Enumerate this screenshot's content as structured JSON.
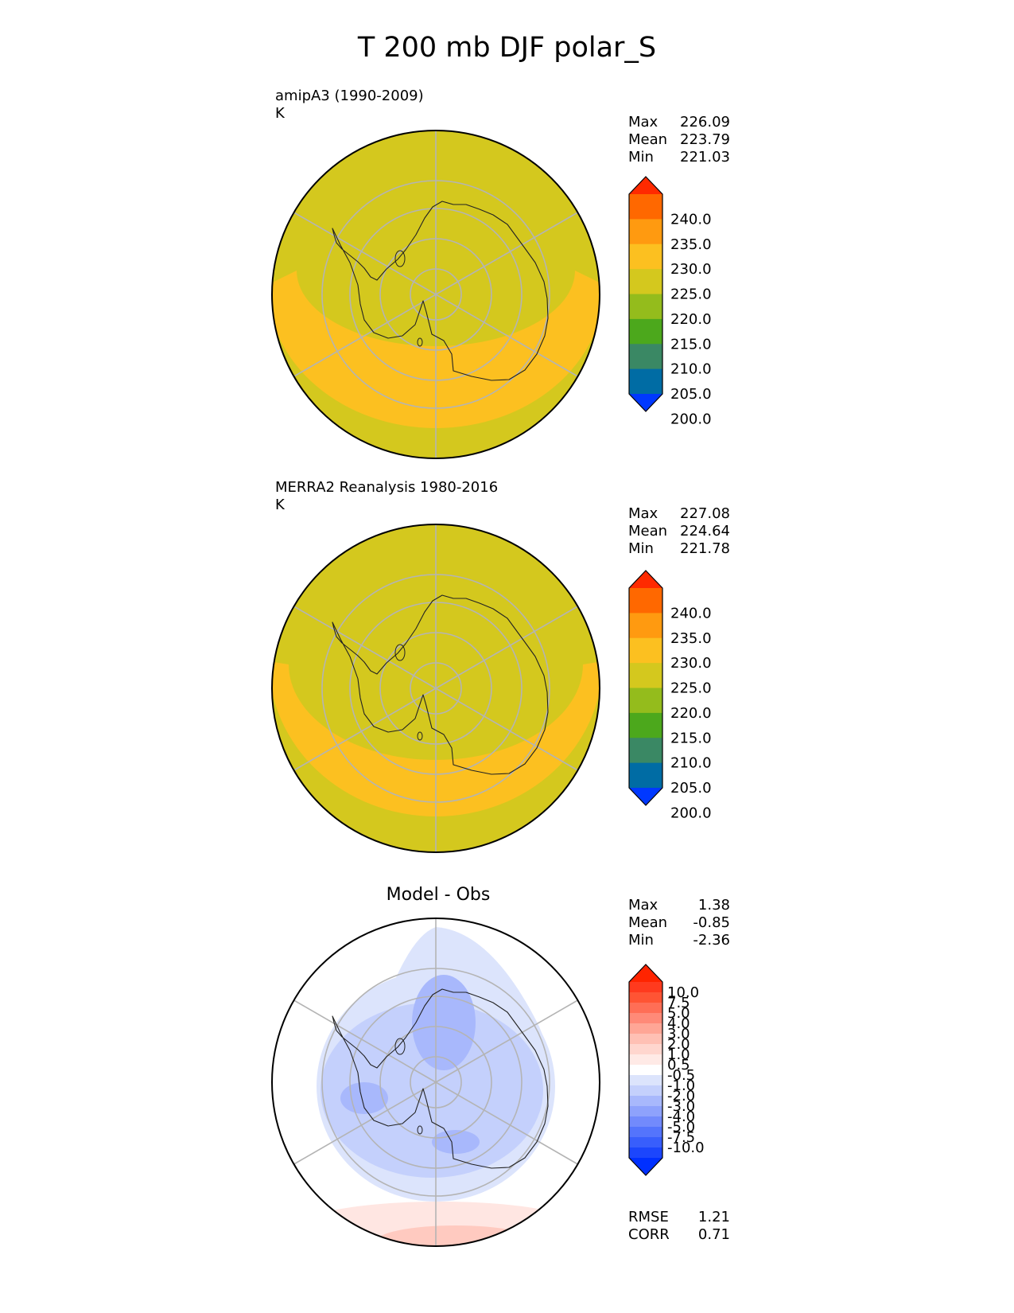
{
  "figure": {
    "title": "T 200 mb DJF polar_S"
  },
  "panels": [
    {
      "id": "model",
      "label": "amipA3 (1990-2009)",
      "units": "K",
      "stats": [
        {
          "name": "Max",
          "value": "226.09"
        },
        {
          "name": "Mean",
          "value": "223.79"
        },
        {
          "name": "Min",
          "value": "221.03"
        }
      ]
    },
    {
      "id": "obs",
      "label": "MERRA2 Reanalysis 1980-2016",
      "units": "K",
      "stats": [
        {
          "name": "Max",
          "value": "227.08"
        },
        {
          "name": "Mean",
          "value": "224.64"
        },
        {
          "name": "Min",
          "value": "221.78"
        }
      ]
    },
    {
      "id": "diff",
      "title": "Model - Obs",
      "stats": [
        {
          "name": "Max",
          "value": "1.38"
        },
        {
          "name": "Mean",
          "value": "-0.85"
        },
        {
          "name": "Min",
          "value": "-2.36"
        }
      ],
      "metrics": [
        {
          "name": "RMSE",
          "value": "1.21"
        },
        {
          "name": "CORR",
          "value": "0.71"
        }
      ]
    }
  ],
  "chart_data": [
    {
      "type": "heatmap",
      "projection": "south polar stereographic",
      "title": "amipA3 (1990-2009)",
      "units": "K",
      "stats": {
        "max": 226.09,
        "mean": 223.79,
        "min": 221.03
      },
      "colorbar": {
        "ticks": [
          "240.0",
          "235.0",
          "230.0",
          "225.0",
          "220.0",
          "215.0",
          "210.0",
          "205.0",
          "200.0"
        ],
        "colors": [
          "#ff2a00",
          "#ff6800",
          "#ff9a10",
          "#fcc020",
          "#d4c81e",
          "#94bc1c",
          "#4ca81c",
          "#3a8864",
          "#006ca4",
          "#0038ff"
        ],
        "extend": "both"
      },
      "field": [
        {
          "level": "220-225",
          "color": "#d4c81e",
          "region": "background"
        },
        {
          "level": "225-230",
          "color": "#fcc020",
          "region": "ring-band"
        }
      ]
    },
    {
      "type": "heatmap",
      "projection": "south polar stereographic",
      "title": "MERRA2 Reanalysis 1980-2016",
      "units": "K",
      "stats": {
        "max": 227.08,
        "mean": 224.64,
        "min": 221.78
      },
      "colorbar": {
        "ticks": [
          "240.0",
          "235.0",
          "230.0",
          "225.0",
          "220.0",
          "215.0",
          "210.0",
          "205.0",
          "200.0"
        ],
        "colors": [
          "#ff2a00",
          "#ff6800",
          "#ff9a10",
          "#fcc020",
          "#d4c81e",
          "#94bc1c",
          "#4ca81c",
          "#3a8864",
          "#006ca4",
          "#0038ff"
        ],
        "extend": "both"
      },
      "field": [
        {
          "level": "220-225",
          "color": "#d4c81e",
          "region": "background"
        },
        {
          "level": "225-230",
          "color": "#fcc020",
          "region": "ring-band"
        }
      ]
    },
    {
      "type": "heatmap",
      "projection": "south polar stereographic",
      "title": "Model - Obs",
      "stats": {
        "max": 1.38,
        "mean": -0.85,
        "min": -2.36
      },
      "metrics": {
        "rmse": 1.21,
        "corr": 0.71
      },
      "colorbar": {
        "ticks": [
          "10.0",
          "7.5",
          "5.0",
          "4.0",
          "3.0",
          "2.0",
          "1.0",
          "0.5",
          "-0.5",
          "-1.0",
          "-2.0",
          "-3.0",
          "-4.0",
          "-5.0",
          "-7.5",
          "-10.0"
        ],
        "colors": [
          "#ff2400",
          "#ff3a1e",
          "#ff5434",
          "#ff6e56",
          "#ff8a78",
          "#ffa696",
          "#ffc0b4",
          "#ffd6ce",
          "#ffeae6",
          "#ffffff",
          "#dce4fc",
          "#c4d0fc",
          "#a8b8fc",
          "#8ea2fc",
          "#728afc",
          "#5474fc",
          "#385efc",
          "#1c46fc",
          "#0030ff"
        ],
        "extend": "both"
      },
      "field": [
        {
          "level": "-0.5 to 0.5",
          "color": "#ffffff",
          "region": "background"
        },
        {
          "level": "-1.0 to -0.5",
          "color": "#dce4fc",
          "region": "outer"
        },
        {
          "level": "-2.0 to -1.0",
          "color": "#c4d0fc",
          "region": "continent"
        },
        {
          "level": "-3.0 to -2.0",
          "color": "#a8b8fc",
          "region": "patches"
        },
        {
          "level": "0.5 to 1.0",
          "color": "#ffe6e2",
          "region": "lower-band"
        },
        {
          "level": "1.0 to 2.0",
          "color": "#ffcac0",
          "region": "lower-band-core"
        }
      ]
    }
  ]
}
